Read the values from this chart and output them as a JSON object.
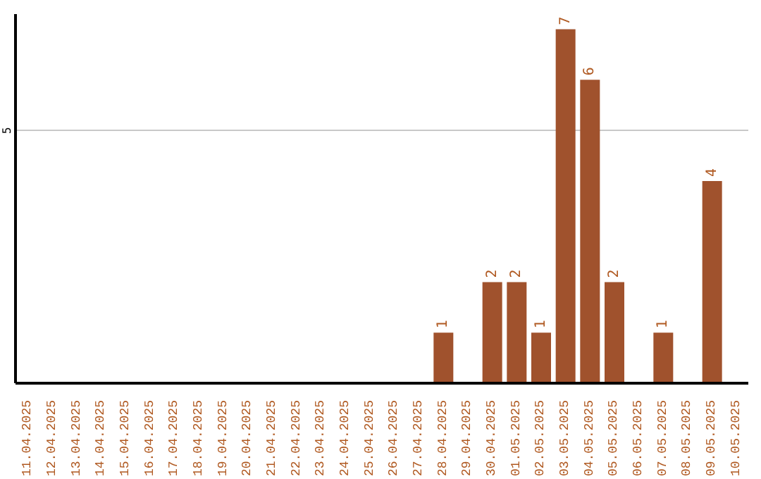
{
  "chart_data": {
    "type": "bar",
    "categories": [
      "11.04.2025",
      "12.04.2025",
      "13.04.2025",
      "14.04.2025",
      "15.04.2025",
      "16.04.2025",
      "17.04.2025",
      "18.04.2025",
      "19.04.2025",
      "20.04.2025",
      "21.04.2025",
      "22.04.2025",
      "23.04.2025",
      "24.04.2025",
      "25.04.2025",
      "26.04.2025",
      "27.04.2025",
      "28.04.2025",
      "29.04.2025",
      "30.04.2025",
      "01.05.2025",
      "02.05.2025",
      "03.05.2025",
      "04.05.2025",
      "05.05.2025",
      "06.05.2025",
      "07.05.2025",
      "08.05.2025",
      "09.05.2025",
      "10.05.2025"
    ],
    "values": [
      null,
      null,
      null,
      null,
      null,
      null,
      null,
      null,
      null,
      null,
      null,
      null,
      null,
      null,
      null,
      null,
      null,
      1,
      null,
      2,
      2,
      1,
      7,
      6,
      2,
      null,
      1,
      null,
      4,
      null
    ],
    "color": "#a0522d",
    "ylim": [
      0,
      7.3
    ],
    "yticks": [
      5
    ],
    "grid": "y",
    "data_labels": true
  }
}
